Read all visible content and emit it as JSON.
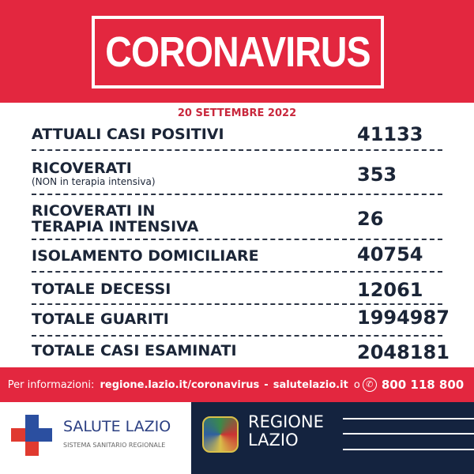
{
  "title": "CORONAVIRUS",
  "date": "20 SETTEMBRE 2022",
  "rows": [
    {
      "label": "ATTUALI CASI POSITIVI",
      "value": "41133"
    },
    {
      "label": "RICOVERATI",
      "sub": "(NON in terapia intensiva)",
      "value": "353"
    },
    {
      "label": "RICOVERATI IN",
      "label2": "TERAPIA INTENSIVA",
      "value": "26"
    },
    {
      "label": "ISOLAMENTO DOMICILIARE",
      "value": "40754"
    },
    {
      "label": "TOTALE DECESSI",
      "value": "12061"
    },
    {
      "label": "TOTALE GUARITI",
      "value": "1994987"
    },
    {
      "label": "TOTALE CASI ESAMINATI",
      "value": "2048181"
    }
  ],
  "info": {
    "prefix": "Per informazioni:",
    "link1": "regione.lazio.it/coronavirus",
    "sep": "-",
    "link2": "salutelazio.it",
    "or": "o",
    "phone": "800 118 800",
    "phone_icon": "phone-icon"
  },
  "logos": {
    "salute": "SALUTE LAZIO",
    "salute_sub": "SISTEMA SANITARIO REGIONALE",
    "regione1": "REGIONE",
    "regione2": "LAZIO"
  },
  "colors": {
    "red": "#e3273f",
    "navy": "#14233f",
    "text": "#1b2537"
  }
}
